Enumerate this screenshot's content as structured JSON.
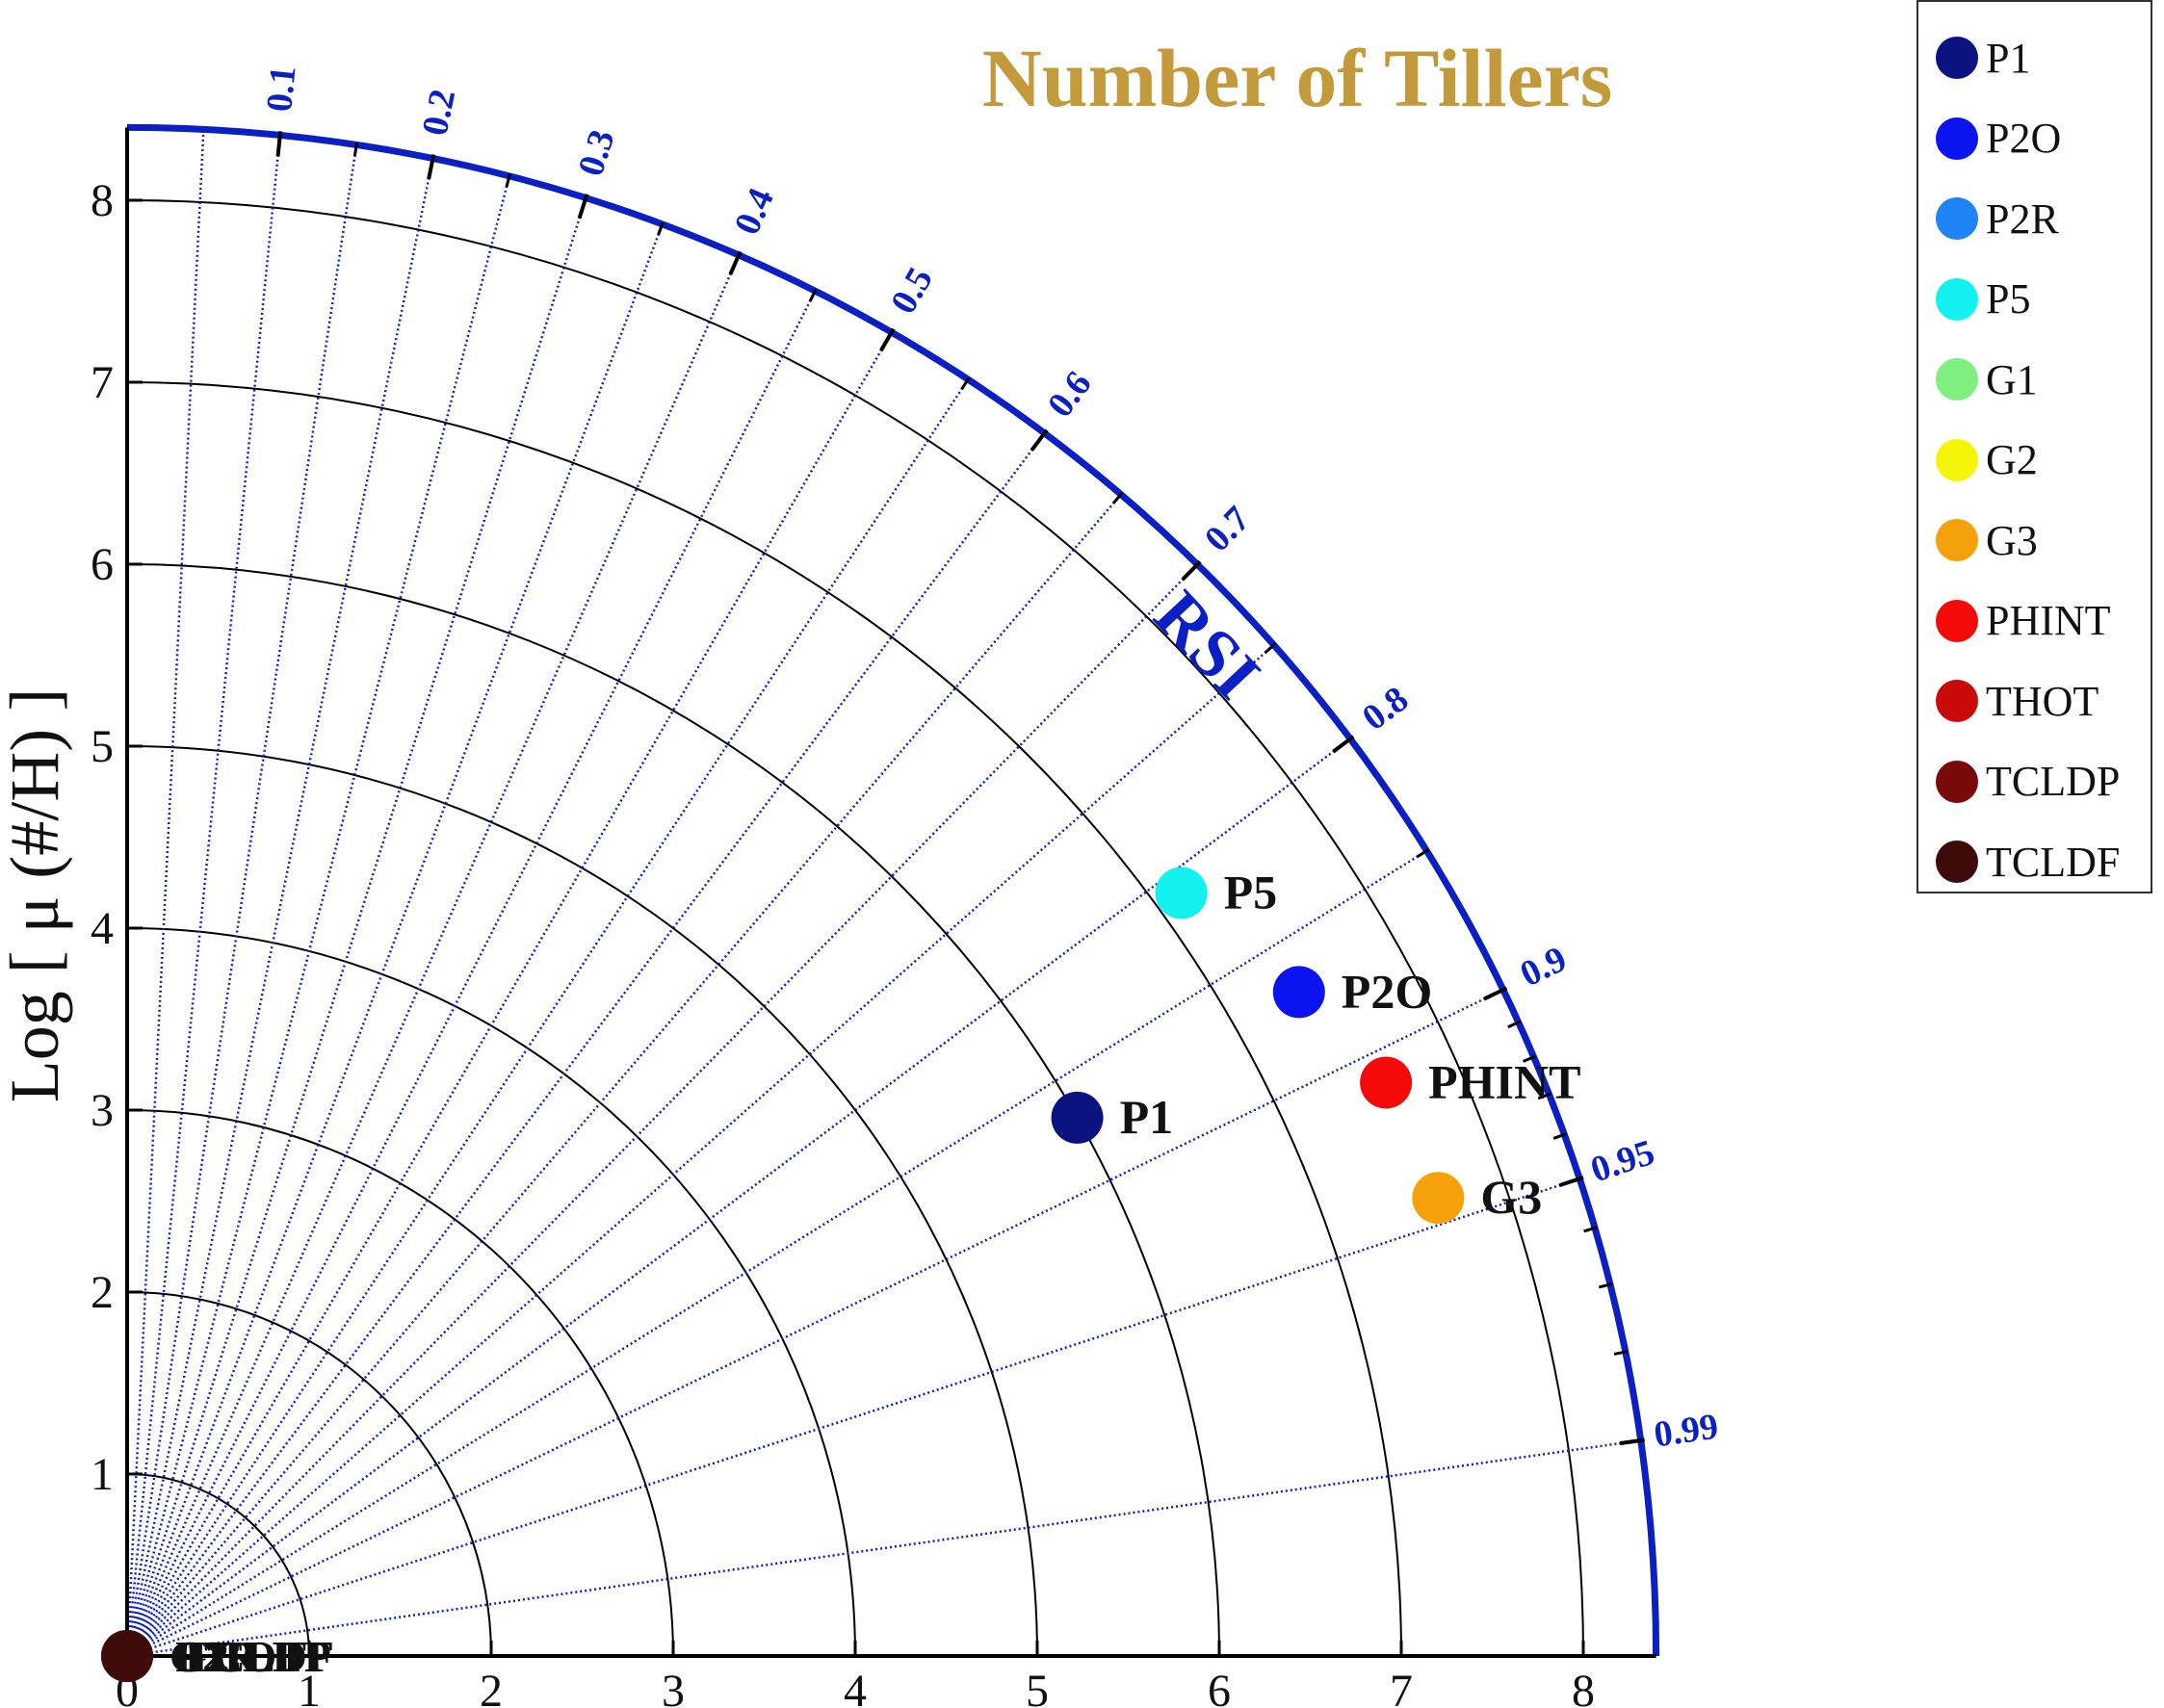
{
  "chart_data": {
    "type": "scatter",
    "subtype": "polar quarter-circle (Taylor-style) diagram",
    "title": "Number of Tillers",
    "title_color": "#c39a3b",
    "radial_axis_label": "Log [ μ (#/H) ]",
    "angular_axis_label": "RSI",
    "radial_range": [
      0,
      8.4
    ],
    "radial_ticks": [
      "0",
      "1",
      "2",
      "3",
      "4",
      "5",
      "6",
      "7",
      "8"
    ],
    "angular_ticks": [
      "0.1",
      "0.2",
      "0.3",
      "0.4",
      "0.5",
      "0.6",
      "0.7",
      "0.8",
      "0.9",
      "0.95",
      "0.99"
    ],
    "angular_minor_ticks": [
      0.15,
      0.25,
      0.35,
      0.45,
      0.55,
      0.65,
      0.75,
      0.85,
      0.91,
      0.92,
      0.93,
      0.94,
      0.96,
      0.97,
      0.98
    ],
    "axis_color": "#0a1fc4",
    "grid": true,
    "legend_position": "top-right",
    "series": [
      {
        "name": "P1",
        "color": "#0b1380",
        "rsi": 0.87,
        "r": 6.0,
        "label": "P1"
      },
      {
        "name": "P2O",
        "color": "#0a14f0",
        "rsi": 0.87,
        "r": 7.4,
        "label": "P2O"
      },
      {
        "name": "P2R",
        "color": "#1e83f5",
        "rsi": 0.0,
        "r": 0.0,
        "label": "P2R"
      },
      {
        "name": "P5",
        "color": "#12f0f0",
        "rsi": 0.81,
        "r": 7.15,
        "label": "P5"
      },
      {
        "name": "G1",
        "color": "#7ff07f",
        "rsi": 0.0,
        "r": 0.0,
        "label": "G1"
      },
      {
        "name": "G2",
        "color": "#f5f50a",
        "rsi": 0.0,
        "r": 0.0,
        "label": "G2"
      },
      {
        "name": "G3",
        "color": "#f5a10a",
        "rsi": 0.944,
        "r": 7.63,
        "label": "G3"
      },
      {
        "name": "PHINT",
        "color": "#f50a0a",
        "rsi": 0.91,
        "r": 7.6,
        "label": "PHINT"
      },
      {
        "name": "THOT",
        "color": "#c80a0a",
        "rsi": 0.0,
        "r": 0.0,
        "label": "THOT"
      },
      {
        "name": "TCLDP",
        "color": "#7a0a0a",
        "rsi": 0.0,
        "r": 0.0,
        "label": "TCLDP"
      },
      {
        "name": "TCLDF",
        "color": "#3e0a0a",
        "rsi": 0.0,
        "r": 0.0,
        "label": "TCLDF"
      }
    ],
    "origin_overlap_labels": [
      "G1",
      "G2",
      "P2R",
      "THOT",
      "TCLDP",
      "TCLDF"
    ]
  }
}
